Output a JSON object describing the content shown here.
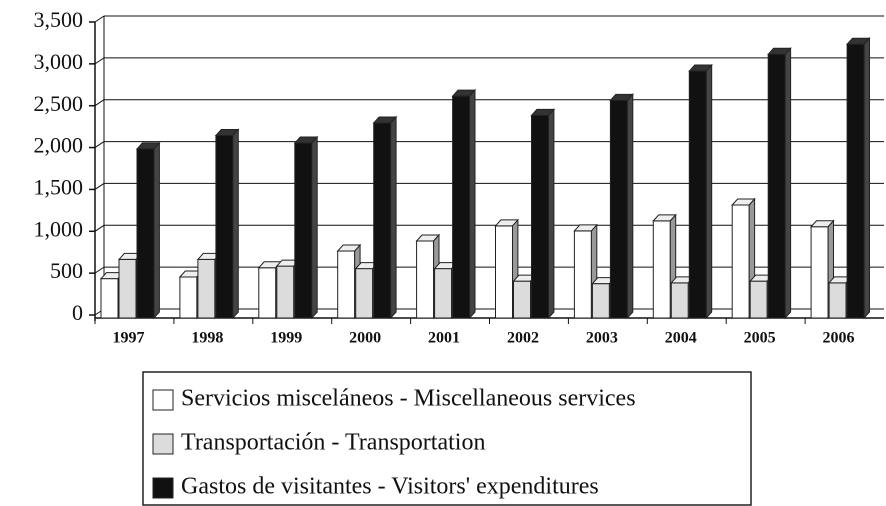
{
  "chart_data": {
    "type": "bar3d",
    "categories": [
      "1997",
      "1998",
      "1999",
      "2000",
      "2001",
      "2002",
      "2003",
      "2004",
      "2005",
      "2006"
    ],
    "series": [
      {
        "name": "Servicios misceláneos - Miscellaneous services",
        "color": "#ffffff",
        "values": [
          470,
          490,
          600,
          800,
          920,
          1100,
          1040,
          1160,
          1350,
          1090
        ]
      },
      {
        "name": "Transportación - Transportation",
        "color": "#dcdcdc",
        "values": [
          700,
          700,
          620,
          590,
          590,
          440,
          410,
          420,
          440,
          420
        ]
      },
      {
        "name": "Gastos de visitantes - Visitors' expenditures",
        "color": "#111111",
        "values": [
          2020,
          2180,
          2090,
          2330,
          2650,
          2420,
          2600,
          2950,
          3150,
          3270
        ]
      }
    ],
    "ylim": [
      0,
      3500
    ],
    "yticks": [
      0,
      500,
      {
        "value": 1000,
        "label": "1,000"
      },
      {
        "value": 1500,
        "label": "1,500"
      },
      {
        "value": 2000,
        "label": "2,000"
      },
      {
        "value": 2500,
        "label": "2,500"
      },
      {
        "value": 3000,
        "label": "3,000"
      },
      {
        "value": 3500,
        "label": "3,500"
      }
    ],
    "grid": true
  }
}
